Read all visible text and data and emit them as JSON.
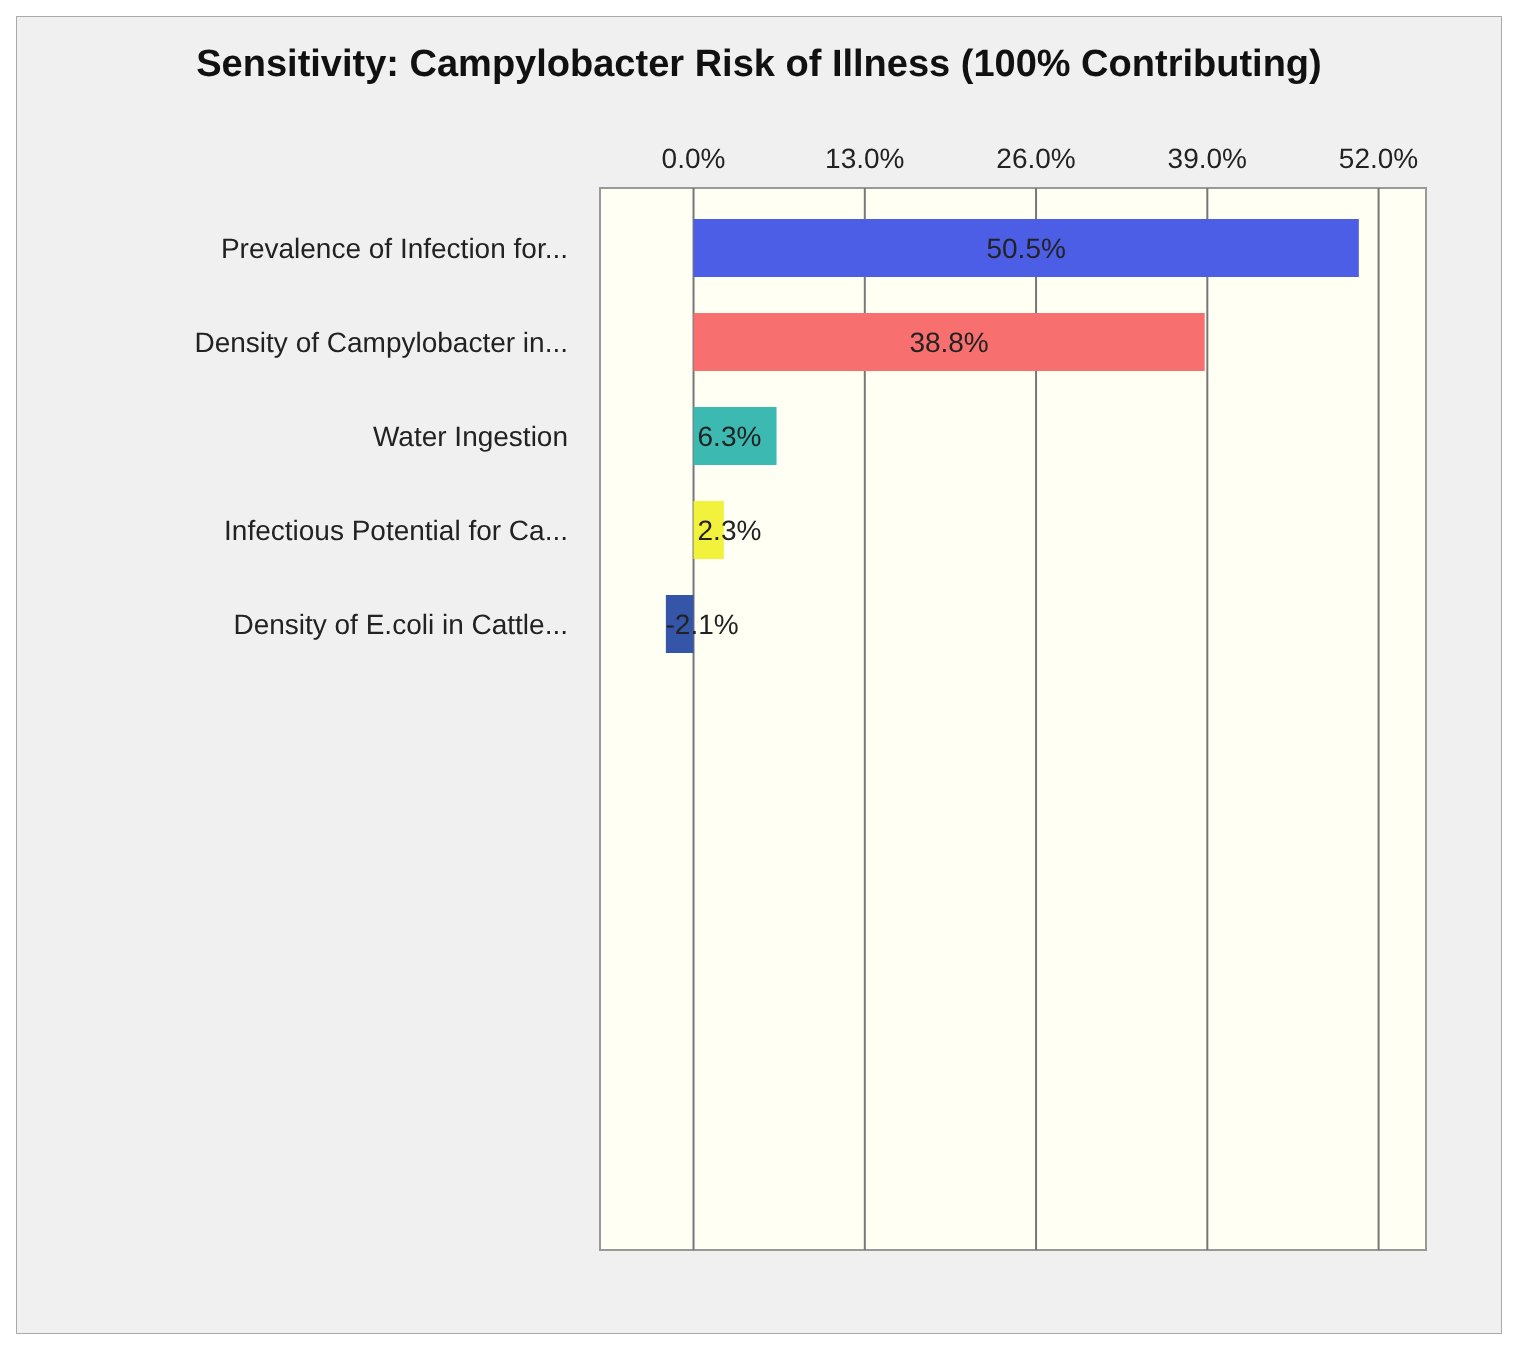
{
  "chart_data": {
    "type": "bar",
    "orientation": "horizontal",
    "title": "Sensitivity: Campylobacter Risk of Illness (100% Contributing)",
    "categories": [
      "Prevalence of Infection for...",
      "Density of Campylobacter in...",
      "Water Ingestion",
      "Infectious Potential for Ca...",
      "Density of E.coli in Cattle..."
    ],
    "values": [
      50.5,
      38.8,
      6.3,
      2.3,
      -2.1
    ],
    "value_labels": [
      "50.5%",
      "38.8%",
      "6.3%",
      "2.3%",
      "-2.1%"
    ],
    "colors": [
      "#4c5ee6",
      "#f86f6f",
      "#3cb9b0",
      "#f2f23c",
      "#3555a8"
    ],
    "xlim": [
      -7.1,
      55.6
    ],
    "xticks": [
      {
        "value": 0,
        "label": "0.0%"
      },
      {
        "value": 13,
        "label": "13.0%"
      },
      {
        "value": 26,
        "label": "26.0%"
      },
      {
        "value": 39,
        "label": "39.0%"
      },
      {
        "value": 52,
        "label": "52.0%"
      }
    ],
    "grid": "x"
  }
}
